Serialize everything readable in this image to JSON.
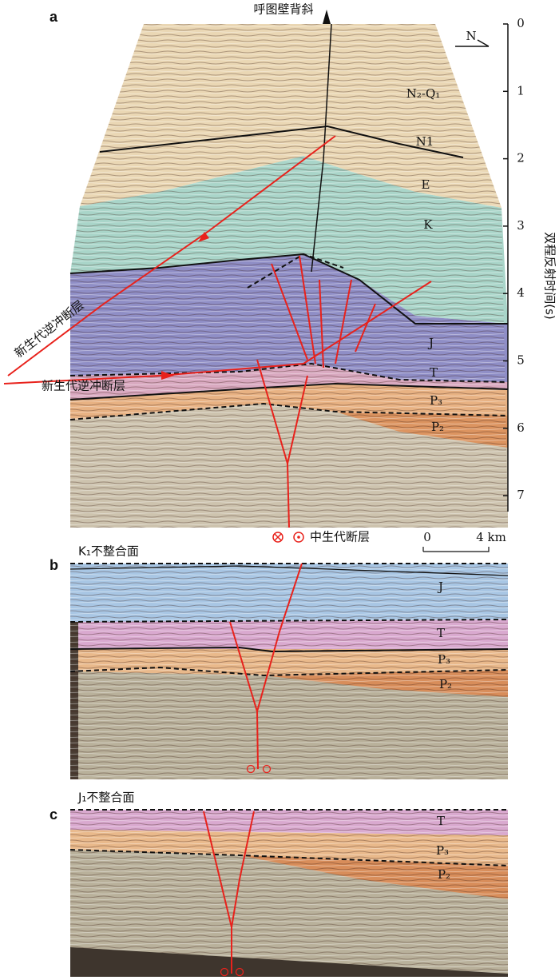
{
  "panel_a": {
    "label": "a",
    "title": "呼图壁背斜",
    "north": "N",
    "layers": [
      "N₂-Q₁",
      "N1",
      "E",
      "K",
      "J",
      "T",
      "P₃",
      "P₂"
    ],
    "time_axis": {
      "label": "双程反射时间(s)",
      "ticks": [
        0,
        1,
        2,
        3,
        4,
        5,
        6,
        7
      ]
    },
    "faults": [
      "新生代逆冲断层",
      "新生代逆冲断层",
      "中生代断层"
    ],
    "scale_bar": [
      "0",
      "4 km"
    ]
  },
  "panel_b": {
    "label": "b",
    "unconformity": "K₁不整合面",
    "layers": [
      "J",
      "T",
      "P₃",
      "P₂"
    ]
  },
  "panel_c": {
    "label": "c",
    "unconformity": "J₁不整合面",
    "layers": [
      "T",
      "P₃",
      "P₂"
    ]
  }
}
